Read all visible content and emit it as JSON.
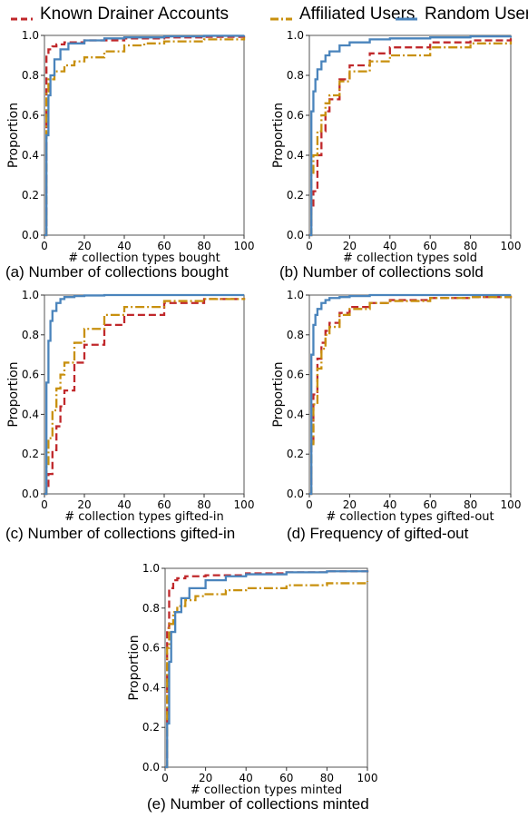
{
  "legend": {
    "items": [
      {
        "label": "Known Drainer Accounts",
        "color": "#c0282b",
        "style": "dashed"
      },
      {
        "label": "Affiliated Users",
        "color": "#c8900e",
        "style": "dashdot"
      },
      {
        "label": "Random Users",
        "color": "#4a84bc",
        "style": "solid"
      }
    ]
  },
  "chart_data": [
    {
      "type": "line",
      "caption": "(a)  Number of collections bought",
      "xlabel": "# collection types bought",
      "ylabel": "Proportion",
      "xlim": [
        0,
        100
      ],
      "ylim": [
        0,
        1
      ],
      "xticks": [
        "0",
        "20",
        "40",
        "60",
        "80",
        "100"
      ],
      "yticks": [
        "0.0",
        "0.2",
        "0.4",
        "0.6",
        "0.8",
        "1.0"
      ],
      "grid": false,
      "series": [
        {
          "name": "Known Drainer Accounts",
          "x": [
            0,
            1,
            2,
            4,
            6,
            10,
            20,
            40,
            60,
            80,
            100
          ],
          "y": [
            0.0,
            0.9,
            0.93,
            0.945,
            0.955,
            0.965,
            0.975,
            0.985,
            0.99,
            0.993,
            0.995
          ]
        },
        {
          "name": "Affiliated Users",
          "x": [
            0,
            1,
            2,
            5,
            10,
            15,
            20,
            30,
            40,
            50,
            60,
            80,
            100
          ],
          "y": [
            0.0,
            0.72,
            0.78,
            0.82,
            0.85,
            0.87,
            0.89,
            0.92,
            0.95,
            0.96,
            0.97,
            0.98,
            0.99
          ]
        },
        {
          "name": "Random Users",
          "x": [
            0,
            1,
            2,
            3,
            5,
            8,
            12,
            20,
            30,
            40,
            60,
            80,
            100
          ],
          "y": [
            0.0,
            0.5,
            0.7,
            0.8,
            0.88,
            0.93,
            0.96,
            0.975,
            0.985,
            0.99,
            0.995,
            0.998,
            1.0
          ]
        }
      ]
    },
    {
      "type": "line",
      "caption": "(b) Number of collections sold",
      "xlabel": "# collection types sold",
      "ylabel": "Proportion",
      "xlim": [
        0,
        100
      ],
      "ylim": [
        0,
        1
      ],
      "xticks": [
        "0",
        "20",
        "40",
        "60",
        "80",
        "100"
      ],
      "yticks": [
        "0.0",
        "0.2",
        "0.4",
        "0.6",
        "0.8",
        "1.0"
      ],
      "grid": false,
      "series": [
        {
          "name": "Known Drainer Accounts",
          "x": [
            0,
            1,
            2,
            4,
            6,
            8,
            10,
            15,
            20,
            30,
            40,
            60,
            80,
            100
          ],
          "y": [
            0.0,
            0.13,
            0.22,
            0.4,
            0.52,
            0.62,
            0.68,
            0.78,
            0.85,
            0.91,
            0.94,
            0.965,
            0.975,
            0.985
          ]
        },
        {
          "name": "Affiliated Users",
          "x": [
            0,
            1,
            2,
            4,
            6,
            8,
            10,
            15,
            20,
            30,
            40,
            60,
            80,
            100
          ],
          "y": [
            0.0,
            0.3,
            0.4,
            0.52,
            0.6,
            0.66,
            0.7,
            0.77,
            0.82,
            0.87,
            0.9,
            0.94,
            0.96,
            0.97
          ]
        },
        {
          "name": "Random Users",
          "x": [
            0,
            1,
            2,
            3,
            4,
            6,
            8,
            10,
            15,
            20,
            30,
            40,
            60,
            80,
            100
          ],
          "y": [
            0.0,
            0.62,
            0.72,
            0.78,
            0.83,
            0.87,
            0.9,
            0.92,
            0.95,
            0.965,
            0.98,
            0.985,
            0.99,
            0.995,
            0.997
          ]
        }
      ]
    },
    {
      "type": "line",
      "caption": "(c) Number of collections gifted-in",
      "xlabel": "# collection types gifted-in",
      "ylabel": "Proportion",
      "xlim": [
        0,
        100
      ],
      "ylim": [
        0,
        1
      ],
      "xticks": [
        "0",
        "20",
        "40",
        "60",
        "80",
        "100"
      ],
      "yticks": [
        "0.0",
        "0.2",
        "0.4",
        "0.6",
        "0.8",
        "1.0"
      ],
      "grid": false,
      "series": [
        {
          "name": "Known Drainer Accounts",
          "x": [
            0,
            1,
            2,
            4,
            6,
            8,
            10,
            15,
            20,
            30,
            40,
            60,
            80,
            100
          ],
          "y": [
            0.0,
            0.03,
            0.1,
            0.22,
            0.34,
            0.44,
            0.52,
            0.66,
            0.75,
            0.85,
            0.9,
            0.96,
            0.98,
            0.985
          ]
        },
        {
          "name": "Affiliated Users",
          "x": [
            0,
            1,
            2,
            4,
            6,
            8,
            10,
            15,
            20,
            30,
            40,
            60,
            80,
            100
          ],
          "y": [
            0.0,
            0.15,
            0.28,
            0.42,
            0.53,
            0.6,
            0.66,
            0.76,
            0.83,
            0.9,
            0.94,
            0.97,
            0.98,
            0.985
          ]
        },
        {
          "name": "Random Users",
          "x": [
            0,
            1,
            2,
            3,
            4,
            6,
            8,
            10,
            15,
            20,
            30,
            50,
            100
          ],
          "y": [
            0.0,
            0.56,
            0.77,
            0.87,
            0.92,
            0.96,
            0.98,
            0.99,
            0.995,
            0.998,
            1.0,
            1.0,
            1.0
          ]
        }
      ]
    },
    {
      "type": "line",
      "caption": "(d) Frequency of gifted-out",
      "xlabel": "# collection types gifted-out",
      "ylabel": "Proportion",
      "xlim": [
        0,
        100
      ],
      "ylim": [
        0,
        1
      ],
      "xticks": [
        "0",
        "20",
        "40",
        "60",
        "80",
        "100"
      ],
      "yticks": [
        "0.0",
        "0.2",
        "0.4",
        "0.6",
        "0.8",
        "1.0"
      ],
      "grid": false,
      "series": [
        {
          "name": "Known Drainer Accounts",
          "x": [
            0,
            1,
            2,
            4,
            6,
            8,
            10,
            15,
            20,
            30,
            40,
            60,
            80,
            100
          ],
          "y": [
            0.0,
            0.25,
            0.5,
            0.68,
            0.76,
            0.82,
            0.86,
            0.91,
            0.94,
            0.96,
            0.975,
            0.985,
            0.99,
            0.995
          ]
        },
        {
          "name": "Affiliated Users",
          "x": [
            0,
            1,
            2,
            4,
            6,
            8,
            10,
            15,
            20,
            30,
            40,
            60,
            80,
            100
          ],
          "y": [
            0.0,
            0.25,
            0.45,
            0.63,
            0.73,
            0.8,
            0.84,
            0.9,
            0.93,
            0.96,
            0.97,
            0.985,
            0.99,
            0.995
          ]
        },
        {
          "name": "Random Users",
          "x": [
            0,
            1,
            2,
            3,
            4,
            6,
            8,
            10,
            15,
            20,
            30,
            50,
            100
          ],
          "y": [
            0.0,
            0.7,
            0.85,
            0.9,
            0.93,
            0.96,
            0.975,
            0.985,
            0.99,
            0.995,
            1.0,
            1.0,
            1.0
          ]
        }
      ]
    },
    {
      "type": "line",
      "caption": "(e) Number of collections minted",
      "xlabel": "# collection types minted",
      "ylabel": "Proportion",
      "xlim": [
        0,
        100
      ],
      "ylim": [
        0,
        1
      ],
      "xticks": [
        "0",
        "20",
        "40",
        "60",
        "80",
        "100"
      ],
      "yticks": [
        "0.0",
        "0.2",
        "0.4",
        "0.6",
        "0.8",
        "1.0"
      ],
      "grid": false,
      "series": [
        {
          "name": "Known Drainer Accounts",
          "x": [
            0,
            1,
            2,
            4,
            6,
            10,
            20,
            40,
            60,
            80,
            100
          ],
          "y": [
            0.0,
            0.7,
            0.9,
            0.94,
            0.95,
            0.96,
            0.965,
            0.975,
            0.98,
            0.985,
            0.99
          ]
        },
        {
          "name": "Affiliated Users",
          "x": [
            0,
            1,
            2,
            4,
            6,
            10,
            15,
            20,
            30,
            40,
            60,
            80,
            100
          ],
          "y": [
            0.0,
            0.6,
            0.72,
            0.78,
            0.81,
            0.84,
            0.86,
            0.87,
            0.89,
            0.9,
            0.915,
            0.925,
            0.935
          ]
        },
        {
          "name": "Random Users",
          "x": [
            0,
            1,
            2,
            3,
            5,
            8,
            12,
            20,
            30,
            40,
            60,
            80,
            100
          ],
          "y": [
            0.0,
            0.22,
            0.53,
            0.68,
            0.78,
            0.85,
            0.9,
            0.94,
            0.96,
            0.97,
            0.98,
            0.985,
            0.99
          ]
        }
      ]
    }
  ]
}
